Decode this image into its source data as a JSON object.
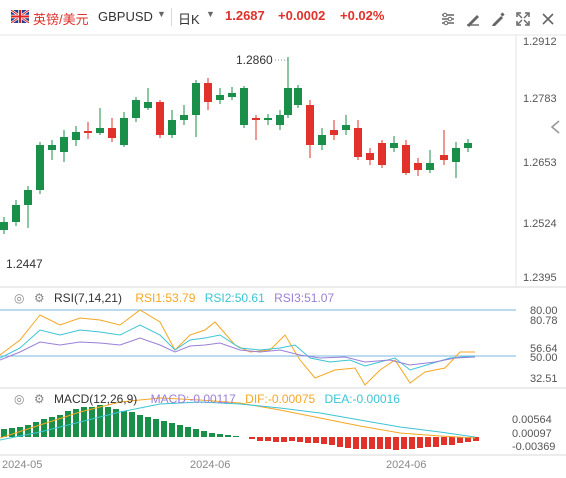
{
  "header": {
    "pair_cn": "英镑/美元",
    "symbol": "GBPUSD",
    "period": "日K",
    "price": "1.2687",
    "change": "+0.0002",
    "change_pct": "+0.02%",
    "color_down": "#e0312a",
    "color_up": "#1a8f4a",
    "icons": [
      "sliders-icon",
      "draw-icon",
      "pen-icon",
      "expand-icon",
      "close-icon"
    ]
  },
  "main": {
    "y_ticks": [
      "1.2912",
      "1.2783",
      "1.2653",
      "1.2524",
      "1.2395"
    ],
    "high_label": "1.2860",
    "low_label": "1.2447"
  },
  "rsi": {
    "name": "RSI(7,14,21)",
    "rsi1": "RSI1:53.79",
    "rsi2": "RSI2:50.61",
    "rsi3": "RSI3:51.07",
    "levels": [
      "80.00",
      "80.78",
      "56.64",
      "50.00",
      "32.51"
    ],
    "colors": {
      "rsi1": "#f5a623",
      "rsi2": "#3bc4d4",
      "rsi3": "#9b7fd8"
    }
  },
  "macd": {
    "name": "MACD(12,26,9)",
    "macd": "MACD:-0.00117",
    "dif": "DIF:-0.00075",
    "dea": "DEA:-0.00016",
    "levels": [
      "0.00564",
      "0.00097",
      "-0.00369"
    ],
    "colors": {
      "macd": "#9b7fd8",
      "dif": "#f5a623",
      "dea": "#3bc4d4"
    }
  },
  "x_axis": [
    "2024-05",
    "2024-06",
    "2024-06"
  ]
}
